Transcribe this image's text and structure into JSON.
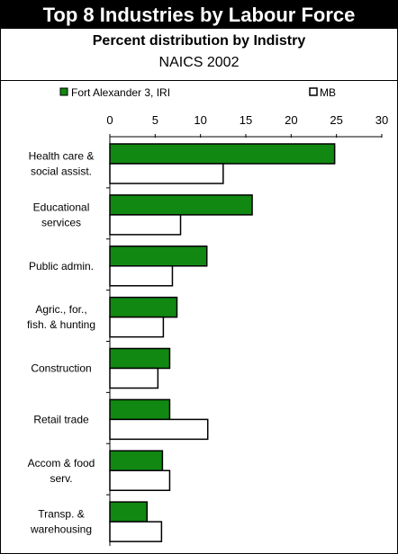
{
  "header": {
    "title": "Top 8 Industries by Labour Force",
    "subtitle": "Percent distribution by Indistry",
    "subtitle2": "NAICS 2002"
  },
  "colors": {
    "series1": "#118811",
    "series2": "#ffffff",
    "stroke": "#000000"
  },
  "chart_data": {
    "type": "bar",
    "orientation": "horizontal",
    "categories": [
      [
        "Health care &",
        "social assist."
      ],
      [
        "Educational",
        "services"
      ],
      [
        "Public admin."
      ],
      [
        "Agric., for.,",
        "fish. & hunting"
      ],
      [
        "Construction"
      ],
      [
        "Retail trade"
      ],
      [
        "Accom & food",
        "serv."
      ],
      [
        "Transp. &",
        "warehousing"
      ]
    ],
    "series": [
      {
        "name": "Fort Alexander 3, IRI",
        "values": [
          24.8,
          15.7,
          10.7,
          7.4,
          6.6,
          6.6,
          5.8,
          4.1
        ]
      },
      {
        "name": "MB",
        "values": [
          12.5,
          7.8,
          6.9,
          5.9,
          5.3,
          10.8,
          6.6,
          5.7
        ]
      }
    ],
    "xlim": [
      0,
      30
    ],
    "xticks": [
      "0",
      "5",
      "10",
      "15",
      "20",
      "25",
      "30"
    ],
    "legend_position": "top",
    "grid": false
  }
}
